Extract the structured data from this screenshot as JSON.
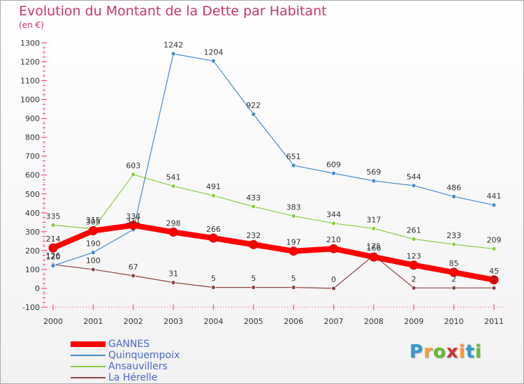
{
  "title": "Evolution du Montant de la Dette par Habitant",
  "subtitle": "(en €)",
  "logo": {
    "text": "Proxiti",
    "letters": [
      "P",
      "r",
      "o",
      "x",
      "i",
      "t",
      "i"
    ],
    "colors": [
      "#3399cc",
      "#ff9933",
      "#66bb33",
      "#cc3333",
      "#ff9933",
      "#3399cc",
      "#66bb33"
    ]
  },
  "chart_data": {
    "type": "line",
    "x": [
      "2000",
      "2001",
      "2002",
      "2003",
      "2004",
      "2005",
      "2006",
      "2007",
      "2008",
      "2009",
      "2010",
      "2011"
    ],
    "ylim": [
      -100,
      1300
    ],
    "yticks": [
      -100,
      0,
      100,
      200,
      300,
      400,
      500,
      600,
      700,
      800,
      900,
      1000,
      1100,
      1200,
      1300
    ],
    "grid": false,
    "legend_position": "bottom-left",
    "series": [
      {
        "name": "GANNES",
        "color": "#ff0000",
        "values": [
          214,
          305,
          334,
          298,
          266,
          232,
          197,
          210,
          166,
          123,
          85,
          45
        ]
      },
      {
        "name": "Quinquempoix",
        "color": "#4488cc",
        "values": [
          120,
          190,
          311,
          1242,
          1204,
          922,
          651,
          609,
          569,
          544,
          486,
          441
        ]
      },
      {
        "name": "Ansauvillers",
        "color": "#88cc44",
        "values": [
          335,
          315,
          603,
          541,
          491,
          433,
          383,
          344,
          317,
          261,
          233,
          209
        ]
      },
      {
        "name": "La Hérelle",
        "color": "#884444",
        "values": [
          126,
          100,
          67,
          31,
          5,
          5,
          5,
          0,
          175,
          2,
          2,
          2
        ]
      }
    ]
  }
}
